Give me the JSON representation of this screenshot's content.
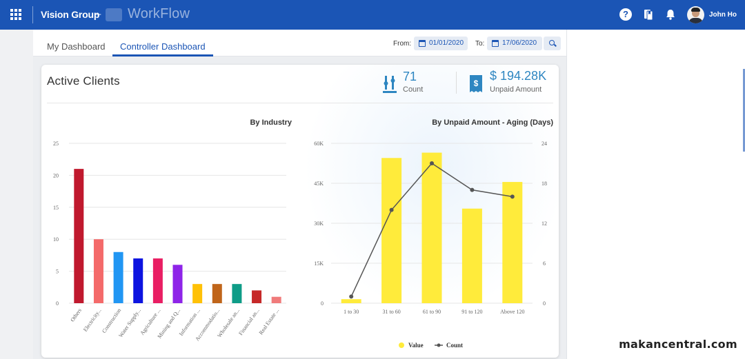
{
  "topbar": {
    "brand": "Vision Group",
    "separator": "–",
    "product": "WorkFlow",
    "username": "John Ho",
    "icons": [
      "apps-grid-icon",
      "help-icon",
      "bookmarks-icon",
      "bell-icon"
    ],
    "accent": "#1b55b5"
  },
  "tabs": [
    {
      "label": "My Dashboard",
      "active": false
    },
    {
      "label": "Controller Dashboard",
      "active": true
    }
  ],
  "filters": {
    "from_label": "From:",
    "from_value": "01/01/2020",
    "to_label": "To:",
    "to_value": "17/06/2020"
  },
  "card": {
    "title": "Active Clients",
    "kpis": [
      {
        "value": "71",
        "label": "Count",
        "icon": "count-gauge-icon"
      },
      {
        "value": "$ 194.28K",
        "label": "Unpaid Amount",
        "icon": "invoice-dollar-icon"
      }
    ]
  },
  "chart_data": [
    {
      "type": "bar",
      "title": "By Industry",
      "categories": [
        "Others",
        "Electricity...",
        "Construction",
        "Water Supply...",
        "Agriculture ...",
        "Mining and Q...",
        "Information ...",
        "Accommodatio...",
        "Wholesale an...",
        "Financial an...",
        "Real Estate ..."
      ],
      "values": [
        21,
        10,
        8,
        7,
        7,
        6,
        3,
        3,
        3,
        2,
        1
      ],
      "colors": [
        "#c0192e",
        "#f46a6a",
        "#2196f3",
        "#0d14e0",
        "#e91e63",
        "#8e24e8",
        "#ffc107",
        "#c0651a",
        "#0e9c87",
        "#c62828",
        "#f07b7b"
      ],
      "yticks": [
        "0",
        "5",
        "10",
        "15",
        "20",
        "25"
      ],
      "ylim": [
        0,
        25
      ],
      "grid": true
    },
    {
      "type": "bar+line",
      "title": "By Unpaid Amount - Aging (Days)",
      "categories": [
        "1 to 30",
        "31 to 60",
        "61 to 90",
        "91 to 120",
        "Above 120"
      ],
      "series": [
        {
          "name": "Value",
          "type": "bar",
          "axis": "left",
          "values": [
            1500,
            54500,
            56500,
            35500,
            45500
          ],
          "color": "#ffeb3b"
        },
        {
          "name": "Count",
          "type": "line",
          "axis": "right",
          "values": [
            1,
            14,
            21,
            17,
            16
          ],
          "color": "#555555"
        }
      ],
      "yticks_left": [
        "0",
        "15K",
        "30K",
        "45K",
        "60K"
      ],
      "ylim_left": [
        0,
        60000
      ],
      "yticks_right": [
        "0",
        "6",
        "12",
        "18",
        "24"
      ],
      "ylim_right": [
        0,
        24
      ],
      "legend": "bottom-center",
      "grid": true
    }
  ],
  "watermark": "makancentral.com"
}
